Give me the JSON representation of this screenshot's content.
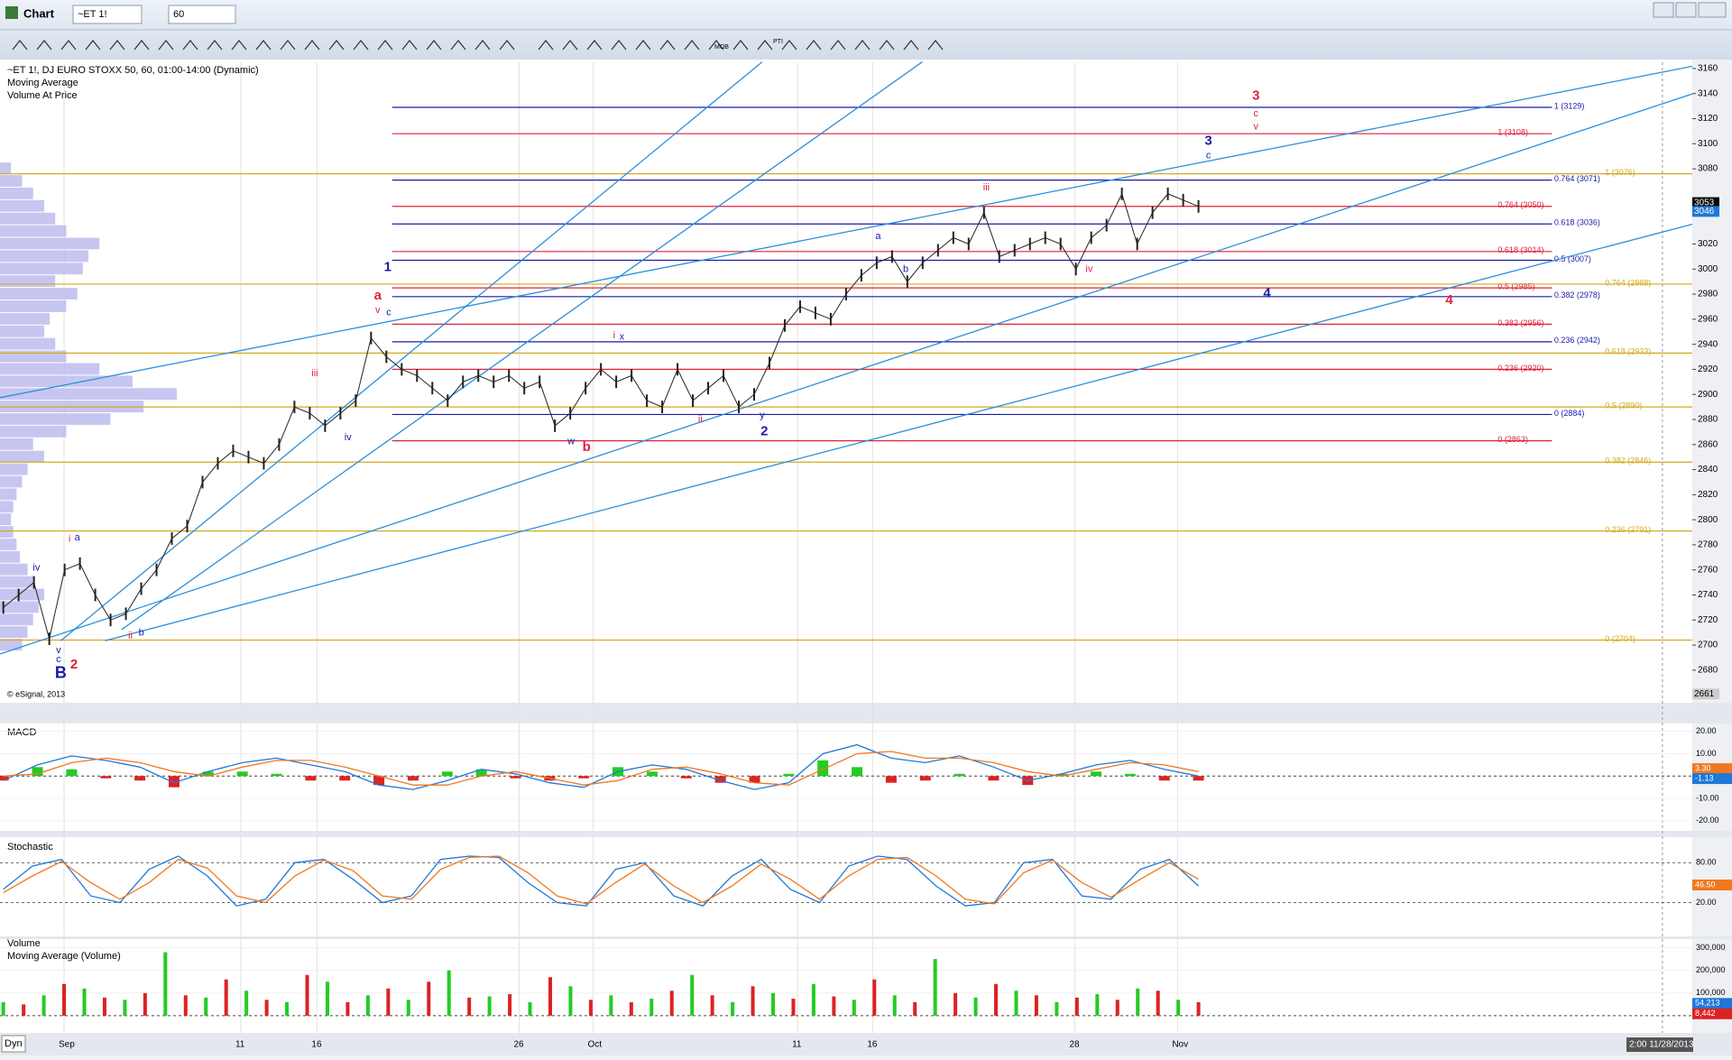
{
  "window": {
    "title": "Chart",
    "symbol": "~ET 1!",
    "interval": "60"
  },
  "toolbar": {
    "labels": [
      "MOB",
      "PTI"
    ]
  },
  "chart": {
    "header": [
      "~ET 1!, DJ EURO STOXX 50, 60, 01:00-14:00 (Dynamic)",
      "Moving Average",
      "Volume At Price"
    ],
    "copyright": "© eSignal, 2013",
    "ylim": [
      2654,
      3165
    ],
    "yticks": [
      3160,
      3140,
      3120,
      3100,
      3080,
      3020,
      3000,
      2980,
      2960,
      2940,
      2920,
      2900,
      2880,
      2860,
      2840,
      2820,
      2800,
      2780,
      2760,
      2740,
      2720,
      2700,
      2680
    ],
    "price_tags": [
      {
        "value": 3053,
        "color": "#000000"
      },
      {
        "value": 3046,
        "color": "#1e78d8"
      }
    ],
    "bottom_tag": 2661,
    "price_color": "#222222",
    "values": [
      2730,
      2740,
      2750,
      2705,
      2760,
      2765,
      2740,
      2720,
      2725,
      2745,
      2760,
      2785,
      2795,
      2830,
      2845,
      2855,
      2850,
      2845,
      2860,
      2890,
      2885,
      2875,
      2885,
      2895,
      2945,
      2930,
      2920,
      2915,
      2905,
      2895,
      2910,
      2915,
      2910,
      2915,
      2905,
      2910,
      2875,
      2885,
      2905,
      2920,
      2910,
      2915,
      2895,
      2890,
      2920,
      2895,
      2905,
      2915,
      2890,
      2900,
      2925,
      2955,
      2970,
      2965,
      2960,
      2980,
      2995,
      3005,
      3010,
      2990,
      3005,
      3015,
      3025,
      3020,
      3045,
      3010,
      3015,
      3020,
      3025,
      3020,
      3000,
      3025,
      3035,
      3060,
      3020,
      3045,
      3060,
      3055,
      3050
    ],
    "volume_at_price": {
      "color": "#b8b8ee",
      "prices": [
        2700,
        2710,
        2720,
        2730,
        2740,
        2750,
        2760,
        2770,
        2780,
        2790,
        2800,
        2810,
        2820,
        2830,
        2840,
        2850,
        2860,
        2870,
        2880,
        2890,
        2900,
        2910,
        2920,
        2930,
        2940,
        2950,
        2960,
        2970,
        2980,
        2990,
        3000,
        3010,
        3020,
        3030,
        3040,
        3050,
        3060,
        3070,
        3080
      ],
      "values": [
        20,
        25,
        30,
        35,
        40,
        30,
        25,
        18,
        15,
        12,
        10,
        12,
        15,
        20,
        25,
        40,
        30,
        60,
        100,
        130,
        160,
        120,
        90,
        60,
        50,
        40,
        45,
        60,
        70,
        50,
        75,
        80,
        90,
        60,
        50,
        40,
        30,
        20,
        10
      ]
    },
    "fib_sets": [
      {
        "color": "#1a1aa8",
        "extends_full": false,
        "levels": [
          {
            "label": "1 (3129)",
            "value": 3129
          },
          {
            "label": "0.764 (3071)",
            "value": 3071
          },
          {
            "label": "0.618 (3036)",
            "value": 3036
          },
          {
            "label": "0.5 (3007)",
            "value": 3007
          },
          {
            "label": "0.382 (2978)",
            "value": 2978
          },
          {
            "label": "0.236 (2942)",
            "value": 2942
          },
          {
            "label": "0 (2884)",
            "value": 2884
          }
        ]
      },
      {
        "color": "#e0203a",
        "extends_full": false,
        "levels": [
          {
            "label": "1 (3108)",
            "value": 3108
          },
          {
            "label": "0.764 (3050)",
            "value": 3050
          },
          {
            "label": "0.618 (3014)",
            "value": 3014
          },
          {
            "label": "0.5 (2985)",
            "value": 2985
          },
          {
            "label": "0.382 (2956)",
            "value": 2956
          },
          {
            "label": "0.236 (2920)",
            "value": 2920
          },
          {
            "label": "0 (2863)",
            "value": 2863
          }
        ]
      },
      {
        "color": "#d4aa20",
        "extends_full": true,
        "levels": [
          {
            "label": "1 (3076)",
            "value": 3076
          },
          {
            "label": "0.764 (2988)",
            "value": 2988
          },
          {
            "label": "0.618 (2933)",
            "value": 2933
          },
          {
            "label": "0.5 (2890)",
            "value": 2890
          },
          {
            "label": "0.382 (2846)",
            "value": 2846
          },
          {
            "label": "0.236 (2791)",
            "value": 2791
          },
          {
            "label": "0 (2704)",
            "value": 2704
          }
        ]
      }
    ]
  },
  "wave_labels": [
    "1",
    "a",
    "v",
    "c",
    "iii",
    "iv",
    "i",
    "a",
    "iv",
    "ii",
    "b",
    "v",
    "c",
    "B",
    "2",
    "w",
    "b",
    "i",
    "x",
    "ii",
    "y",
    "2",
    "a",
    "b",
    "iii",
    "iv",
    "3",
    "c",
    "3",
    "c",
    "v",
    "4",
    "4"
  ],
  "macd": {
    "title": "MACD",
    "ylim": [
      -24.5,
      23.5
    ],
    "yticks": [
      {
        "value": 20,
        "label": "20.00"
      },
      {
        "value": 10,
        "label": "10.00"
      },
      {
        "value": 0,
        "label": "0.00"
      },
      {
        "value": -10,
        "label": "-10.00"
      },
      {
        "value": -20,
        "label": "-20.00"
      }
    ],
    "tags": [
      {
        "value": 3.3,
        "label": "3.30",
        "color": "#f07820"
      },
      {
        "value": -1.13,
        "label": "-1.13",
        "color": "#1e78d8"
      }
    ],
    "macd": {
      "color": "#1e78d8",
      "values": [
        -2,
        5,
        9,
        7,
        4,
        -3,
        2,
        6,
        8,
        5,
        2,
        -4,
        -6,
        -2,
        3,
        1,
        -3,
        -5,
        2,
        5,
        3,
        -2,
        -6,
        -3,
        10,
        14,
        8,
        6,
        9,
        4,
        -2,
        1,
        5,
        7,
        3,
        0
      ]
    },
    "signal": {
      "color": "#f07820",
      "values": [
        0,
        1,
        6,
        8,
        6,
        2,
        0,
        4,
        7,
        7,
        4,
        0,
        -4,
        -4,
        0,
        2,
        -1,
        -4,
        -2,
        3,
        4,
        1,
        -3,
        -4,
        3,
        10,
        11,
        8,
        8,
        6,
        2,
        0,
        3,
        6,
        5,
        2
      ]
    },
    "histogram": {
      "up_color": "#22cc22",
      "down_color": "#dd2222",
      "values": [
        -2,
        4,
        3,
        -1,
        -2,
        -5,
        2,
        2,
        1,
        -2,
        -2,
        -4,
        -2,
        2,
        3,
        -1,
        -2,
        -1,
        4,
        2,
        -1,
        -3,
        -3,
        1,
        7,
        4,
        -3,
        -2,
        1,
        -2,
        -4,
        1,
        2,
        1,
        -2,
        -2
      ]
    }
  },
  "stochastic": {
    "title": "Stochastic",
    "ylim": [
      -31,
      118.5
    ],
    "yticks": [
      {
        "value": 80,
        "label": "80.00"
      },
      {
        "value": 20,
        "label": "20.00"
      }
    ],
    "tag": {
      "value": 46.5,
      "label": "46.50",
      "color": "#f07820"
    },
    "k": {
      "color": "#1e78d8",
      "values": [
        40,
        75,
        85,
        30,
        20,
        70,
        90,
        60,
        15,
        25,
        80,
        85,
        55,
        20,
        30,
        85,
        90,
        88,
        50,
        20,
        15,
        70,
        80,
        30,
        15,
        60,
        85,
        40,
        20,
        75,
        90,
        85,
        45,
        15,
        20,
        80,
        85,
        30,
        25,
        70,
        85,
        45
      ]
    },
    "d": {
      "color": "#f07820",
      "values": [
        35,
        60,
        82,
        50,
        25,
        50,
        85,
        72,
        30,
        20,
        60,
        84,
        68,
        30,
        25,
        70,
        88,
        90,
        65,
        30,
        18,
        50,
        78,
        45,
        20,
        45,
        78,
        55,
        25,
        60,
        85,
        88,
        60,
        25,
        18,
        65,
        84,
        50,
        28,
        55,
        80,
        55
      ]
    }
  },
  "volume": {
    "titles": [
      "Volume",
      "Moving Average (Volume)"
    ],
    "ylim": [
      -76000,
      338000
    ],
    "yticks": [
      {
        "value": 300000,
        "label": "300,000"
      },
      {
        "value": 200000,
        "label": "200,000"
      },
      {
        "value": 100000,
        "label": "100,000"
      }
    ],
    "tags": [
      {
        "value": 54213,
        "label": "54,213",
        "color": "#1e78d8"
      },
      {
        "value": 8442,
        "label": "8,442",
        "color": "#dd2222"
      }
    ],
    "up": {
      "color": "#22cc22",
      "values": [
        60000,
        90000,
        120000,
        70000,
        280000,
        80000,
        110000,
        60000,
        150000,
        90000,
        70000,
        200000,
        85000,
        60000,
        130000,
        90000,
        75000,
        180000,
        60000,
        100000,
        140000,
        70000,
        90000,
        250000,
        80000,
        110000,
        60000,
        95000,
        120000,
        70000
      ]
    },
    "down": {
      "color": "#dd2222",
      "values": [
        50000,
        140000,
        80000,
        100000,
        90000,
        160000,
        70000,
        180000,
        60000,
        120000,
        150000,
        80000,
        95000,
        170000,
        70000,
        60000,
        110000,
        90000,
        130000,
        75000,
        85000,
        160000,
        60000,
        100000,
        140000,
        90000,
        80000,
        70000,
        110000,
        60000
      ]
    }
  },
  "time_axis": {
    "mode": "Dyn",
    "labels": [
      "Sep",
      "11",
      "16",
      "26",
      "Oct",
      "11",
      "16",
      "28",
      "Nov"
    ],
    "timestamp": "2:00 11/28/2013"
  }
}
